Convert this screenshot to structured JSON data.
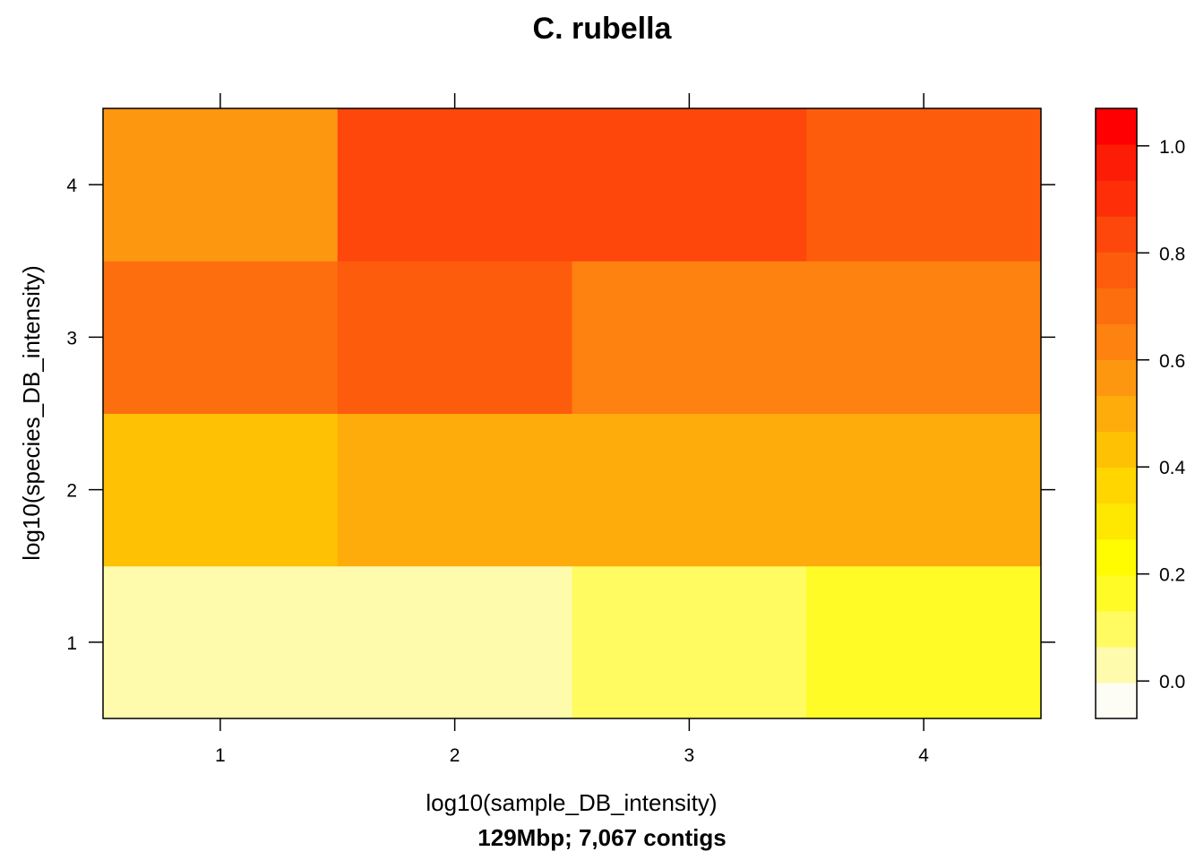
{
  "chart_data": {
    "type": "heatmap",
    "title": "C. rubella",
    "xlabel": "log10(sample_DB_intensity)",
    "ylabel": "log10(species_DB_intensity)",
    "subtitle": "129Mbp; 7,067 contigs",
    "x": [
      1,
      2,
      3,
      4
    ],
    "y": [
      1,
      2,
      3,
      4
    ],
    "xlim": [
      0.5,
      4.5
    ],
    "ylim": [
      0.5,
      4.5
    ],
    "x_ticks": [
      "1",
      "2",
      "3",
      "4"
    ],
    "y_ticks": [
      "1",
      "2",
      "3",
      "4"
    ],
    "values": [
      [
        0.0,
        0.0,
        0.08,
        0.16
      ],
      [
        0.42,
        0.49,
        0.49,
        0.49
      ],
      [
        0.67,
        0.78,
        0.66,
        0.66
      ],
      [
        0.6,
        0.86,
        0.86,
        0.79
      ]
    ],
    "colorbar": {
      "min": -0.07,
      "max": 1.07,
      "ticks": [
        0.0,
        0.2,
        0.4,
        0.6,
        0.8,
        1.0
      ],
      "tick_labels": [
        "0.0",
        "0.2",
        "0.4",
        "0.6",
        "0.8",
        "1.0"
      ],
      "bins": [
        "#fdfdf5",
        "#fffbad",
        "#fffb60",
        "#fffb26",
        "#fffb00",
        "#fee700",
        "#ffd600",
        "#fec103",
        "#feac0c",
        "#fe9710",
        "#fd8210",
        "#fd6e0e",
        "#fd5c0c",
        "#fd470b",
        "#fd2e08",
        "#fd1c06",
        "#fe0002"
      ]
    },
    "grid": false,
    "legend": "colorbar-right"
  }
}
